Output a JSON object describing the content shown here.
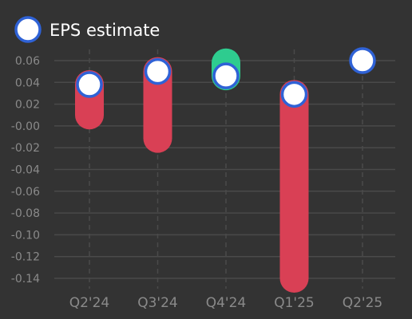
{
  "chart_data": {
    "type": "range-bar",
    "legend": {
      "label": "EPS estimate",
      "placement": "top-left"
    },
    "categories": [
      "Q2'24",
      "Q3'24",
      "Q4'24",
      "Q1'25",
      "Q2'25"
    ],
    "yticks": [
      "0.06",
      "0.04",
      "0.02",
      "-0.00",
      "-0.02",
      "-0.04",
      "-0.06",
      "-0.08",
      "-0.10",
      "-0.12",
      "-0.14"
    ],
    "ylim": [
      -0.14,
      0.06
    ],
    "grid": true,
    "series": [
      {
        "name": "EPS estimate",
        "values": [
          0.038,
          0.05,
          0.046,
          0.029,
          0.06
        ]
      },
      {
        "values": [
          0.01,
          -0.0115,
          0.058,
          -0.14,
          null
        ]
      }
    ],
    "colors": {
      "miss": "#d94055",
      "beat": "#2ecc8f",
      "marker_fill": "#ffffff",
      "marker_stroke": "#2f62d6",
      "grid": "#4a4a4a"
    }
  }
}
